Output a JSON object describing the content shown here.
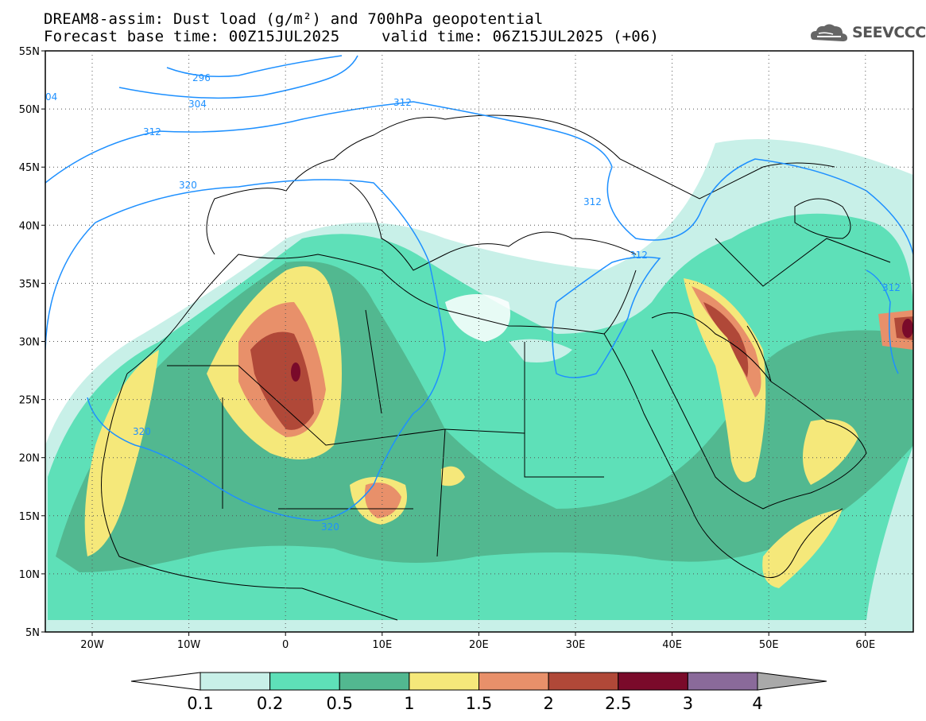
{
  "header": {
    "line1": "DREAM8-assim: Dust load (g/m²) and 700hPa geopotential",
    "line2_left": "Forecast base time: 00Z15JUL2025",
    "line2_right": "valid time: 06Z15JUL2025 (+06)"
  },
  "logo": {
    "text": "SEEVCCC",
    "icon": "cloud-logo-icon"
  },
  "map": {
    "lat_labels": [
      "55N",
      "50N",
      "45N",
      "40N",
      "35N",
      "30N",
      "25N",
      "20N",
      "15N",
      "10N",
      "5N"
    ],
    "lon_labels": [
      "20W",
      "10W",
      "0",
      "10E",
      "20E",
      "30E",
      "40E",
      "50E",
      "60E"
    ],
    "contour_labels": [
      "296",
      "304",
      "312",
      "312",
      "312",
      "312",
      "320",
      "320",
      "320",
      "312",
      "04"
    ]
  },
  "colorbar": {
    "labels": [
      "0.1",
      "0.2",
      "0.5",
      "1",
      "1.5",
      "2",
      "2.5",
      "3",
      "4"
    ],
    "colors": [
      "#c8f0e8",
      "#5ee0b8",
      "#52b890",
      "#f5e87a",
      "#e8906a",
      "#b04838",
      "#7a0a2a",
      "#8a6a9a",
      "#a9a9a9"
    ]
  }
}
